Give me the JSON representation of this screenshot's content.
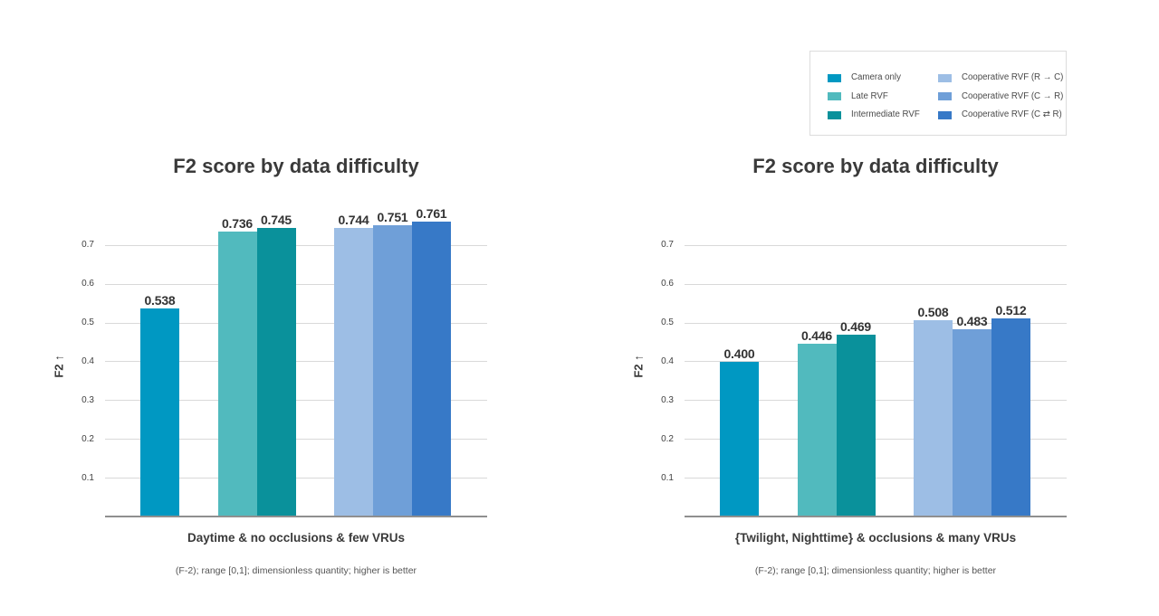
{
  "page": {
    "background": "#ffffff"
  },
  "palette": {
    "camera_only": "#0098c2",
    "late_rvf": "#51babe",
    "intermediate_rvf": "#0a919b",
    "cooperative_rvf_r_to_c": "#9dbee5",
    "cooperative_rvf_c_to_r": "#6f9fd8",
    "cooperative_rvf_c_bidir_r": "#3779c7",
    "gridline": "#d9d9d9",
    "baseline": "#8f8f8f",
    "text_dark": "#3a3a3a",
    "text_gray": "#555555",
    "legend_border": "#dcdcdc"
  },
  "legend": {
    "items": [
      {
        "label": "Camera only",
        "color": "#0098c2"
      },
      {
        "label": "Late RVF",
        "color": "#51babe"
      },
      {
        "label": "Intermediate RVF",
        "color": "#0a919b"
      },
      {
        "label": "Cooperative RVF (R → C)",
        "color": "#9dbee5"
      },
      {
        "label": "Cooperative RVF (C → R)",
        "color": "#6f9fd8"
      },
      {
        "label": "Cooperative RVF (C ⇄ R)",
        "color": "#3779c7"
      }
    ]
  },
  "chart_data": [
    {
      "type": "bar",
      "title": "F2 score by data difficulty",
      "ylabel": "F2 ↑",
      "xlabel": "Daytime & no occlusions & few VRUs",
      "footnote": "(F-2); range [0,1]; dimensionless quantity; higher is better",
      "yticks": [
        "0.1",
        "0.2",
        "0.3",
        "0.4",
        "0.5",
        "0.6",
        "0.7"
      ],
      "ylim": [
        0,
        0.78
      ],
      "grid": true,
      "legend_position": "top-right",
      "categories": [
        "Daytime & no occlusions & few VRUs"
      ],
      "series": [
        {
          "name": "Camera only",
          "value": 0.538,
          "label": "0.538",
          "color": "#0098c2",
          "group": 0
        },
        {
          "name": "Late RVF",
          "value": 0.736,
          "label": "0.736",
          "color": "#51babe",
          "group": 1
        },
        {
          "name": "Intermediate RVF",
          "value": 0.745,
          "label": "0.745",
          "color": "#0a919b",
          "group": 1
        },
        {
          "name": "Cooperative RVF (R → C)",
          "value": 0.744,
          "label": "0.744",
          "color": "#9dbee5",
          "group": 2
        },
        {
          "name": "Cooperative RVF (C → R)",
          "value": 0.751,
          "label": "0.751",
          "color": "#6f9fd8",
          "group": 2
        },
        {
          "name": "Cooperative RVF (C ⇄ R)",
          "value": 0.761,
          "label": "0.761",
          "color": "#3779c7",
          "group": 2
        }
      ]
    },
    {
      "type": "bar",
      "title": "F2 score by data difficulty",
      "ylabel": "F2 ↑",
      "xlabel": "{Twilight, Nighttime} & occlusions & many VRUs",
      "footnote": "(F-2); range [0,1]; dimensionless quantity; higher is better",
      "yticks": [
        "0.1",
        "0.2",
        "0.3",
        "0.4",
        "0.5",
        "0.6",
        "0.7"
      ],
      "ylim": [
        0,
        0.78
      ],
      "grid": true,
      "legend_position": "top-right",
      "categories": [
        "{Twilight, Nighttime} & occlusions & many VRUs"
      ],
      "series": [
        {
          "name": "Camera only",
          "value": 0.4,
          "label": "0.400",
          "color": "#0098c2",
          "group": 0
        },
        {
          "name": "Late RVF",
          "value": 0.446,
          "label": "0.446",
          "color": "#51babe",
          "group": 1
        },
        {
          "name": "Intermediate RVF",
          "value": 0.469,
          "label": "0.469",
          "color": "#0a919b",
          "group": 1
        },
        {
          "name": "Cooperative RVF (R → C)",
          "value": 0.508,
          "label": "0.508",
          "color": "#9dbee5",
          "group": 2
        },
        {
          "name": "Cooperative RVF (C → R)",
          "value": 0.483,
          "label": "0.483",
          "color": "#6f9fd8",
          "group": 2
        },
        {
          "name": "Cooperative RVF (C ⇄ R)",
          "value": 0.512,
          "label": "0.512",
          "color": "#3779c7",
          "group": 2
        }
      ]
    }
  ]
}
